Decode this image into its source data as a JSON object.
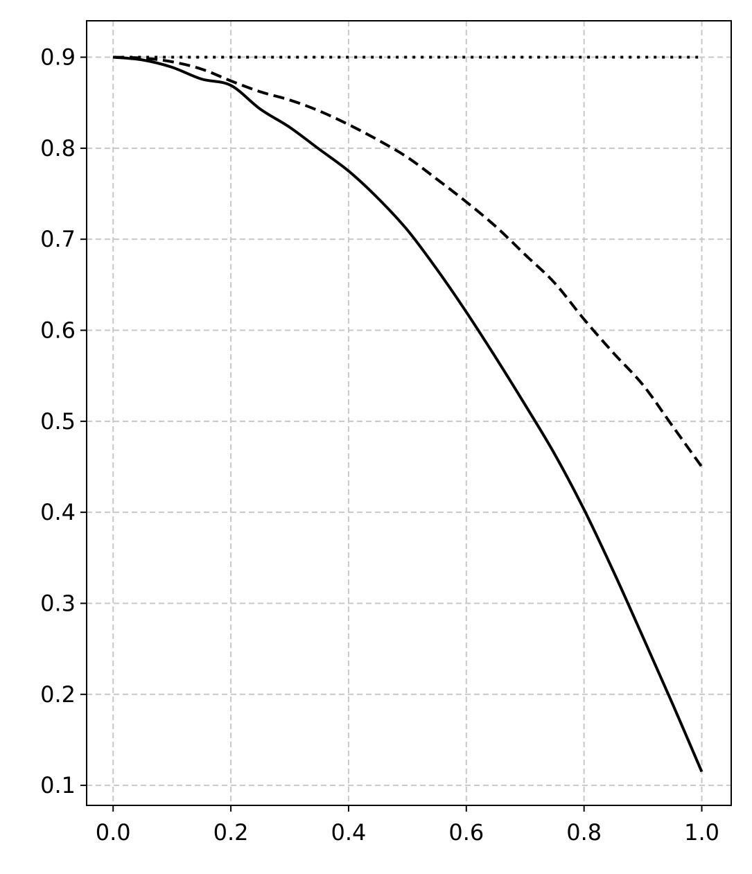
{
  "chart_data": {
    "type": "line",
    "title": "",
    "xlabel": "",
    "ylabel": "",
    "xlim": [
      -0.045,
      1.05
    ],
    "ylim": [
      0.078,
      0.94
    ],
    "grid": true,
    "x_ticks": [
      0.0,
      0.2,
      0.4,
      0.6,
      0.8,
      1.0
    ],
    "x_tick_labels": [
      "0.0",
      "0.2",
      "0.4",
      "0.6",
      "0.8",
      "1.0"
    ],
    "y_ticks": [
      0.1,
      0.2,
      0.3,
      0.4,
      0.5,
      0.6,
      0.7,
      0.8,
      0.9
    ],
    "y_tick_labels": [
      "0.1",
      "0.2",
      "0.3",
      "0.4",
      "0.5",
      "0.6",
      "0.7",
      "0.8",
      "0.9"
    ],
    "x": [
      0.0,
      0.05,
      0.1,
      0.15,
      0.2,
      0.25,
      0.3,
      0.35,
      0.4,
      0.45,
      0.5,
      0.55,
      0.6,
      0.65,
      0.7,
      0.75,
      0.8,
      0.85,
      0.9,
      0.95,
      1.0
    ],
    "series": [
      {
        "style": "solid",
        "color": "#000000",
        "values": [
          0.9,
          0.897,
          0.889,
          0.876,
          0.869,
          0.843,
          0.823,
          0.799,
          0.775,
          0.745,
          0.71,
          0.667,
          0.62,
          0.57,
          0.518,
          0.464,
          0.403,
          0.335,
          0.263,
          0.19,
          0.115
        ]
      },
      {
        "style": "dashed",
        "color": "#000000",
        "values": [
          0.9,
          0.899,
          0.895,
          0.887,
          0.874,
          0.862,
          0.853,
          0.841,
          0.826,
          0.809,
          0.79,
          0.766,
          0.741,
          0.714,
          0.683,
          0.652,
          0.612,
          0.575,
          0.54,
          0.495,
          0.45
        ]
      },
      {
        "style": "dotted",
        "color": "#000000",
        "values": [
          0.9,
          0.9,
          0.9,
          0.9,
          0.9,
          0.9,
          0.9,
          0.9,
          0.9,
          0.9,
          0.9,
          0.9,
          0.9,
          0.9,
          0.9,
          0.9,
          0.9,
          0.9,
          0.9,
          0.9,
          0.9
        ]
      }
    ]
  }
}
